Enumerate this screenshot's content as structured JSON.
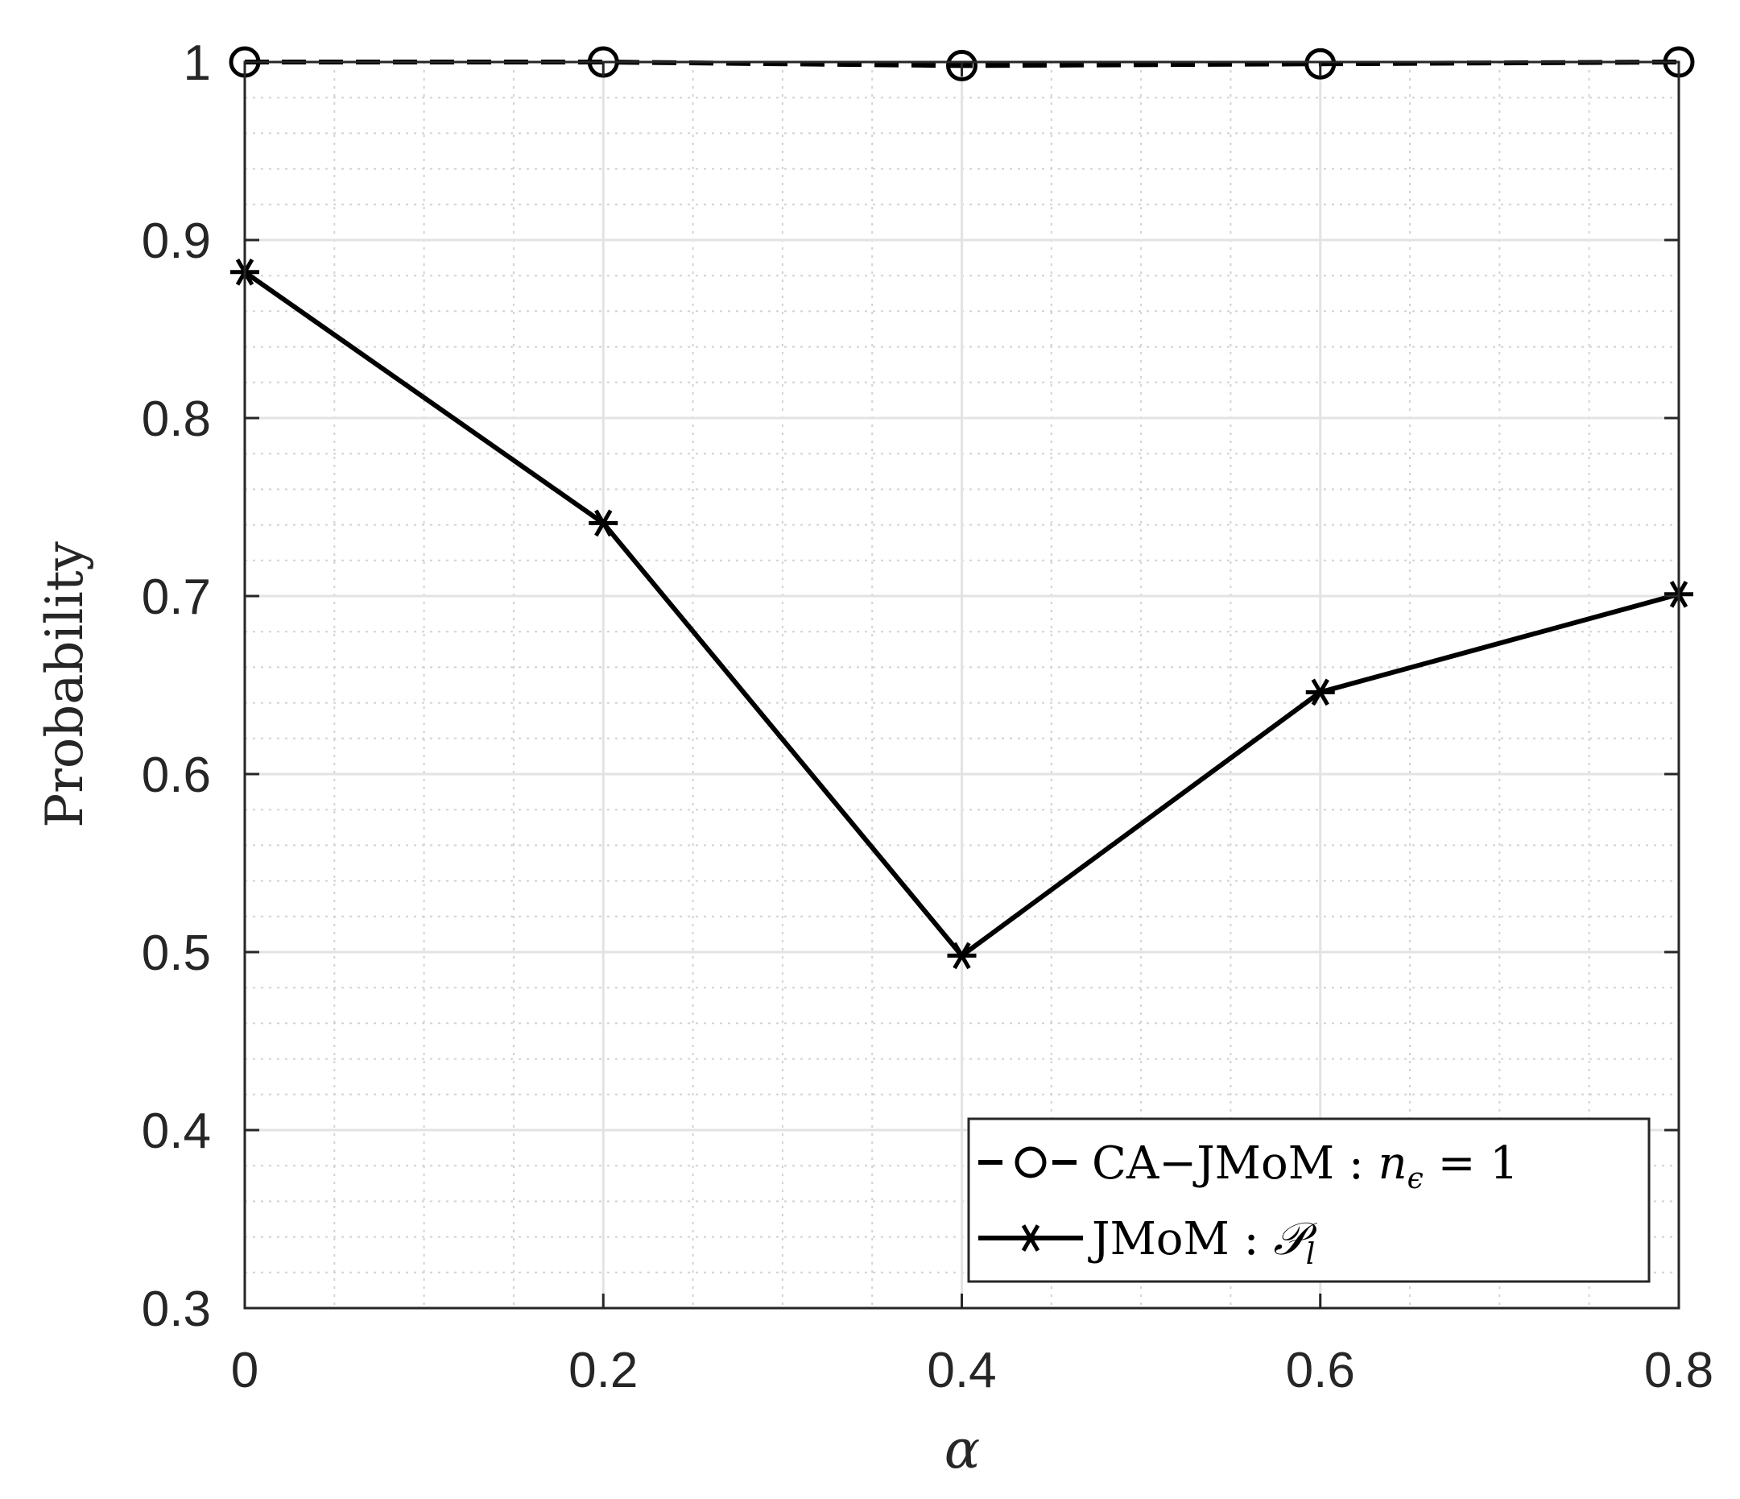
{
  "chart_data": {
    "type": "line",
    "title": "",
    "xlabel": "α",
    "ylabel": "Probability",
    "xlim": [
      0,
      0.8
    ],
    "ylim": [
      0.3,
      1
    ],
    "xticks": [
      0,
      0.2,
      0.4,
      0.6,
      0.8
    ],
    "xtick_labels": [
      "0",
      "0.2",
      "0.4",
      "0.6",
      "0.8"
    ],
    "yticks": [
      0.3,
      0.4,
      0.5,
      0.6,
      0.7,
      0.8,
      0.9,
      1
    ],
    "ytick_labels": [
      "0.3",
      "0.4",
      "0.5",
      "0.6",
      "0.7",
      "0.8",
      "0.9",
      "1"
    ],
    "grid": true,
    "minor_grid": true,
    "legend_position": "bottom-right",
    "series": [
      {
        "name": "CA−JMoM : nϵ = 1",
        "legend_main": "CA−JMoM : ",
        "legend_math": "n",
        "legend_sub": "ϵ",
        "legend_tail": " = 1",
        "line_style": "dashed",
        "marker": "circle",
        "color": "#000000",
        "x": [
          0,
          0.2,
          0.4,
          0.6,
          0.8
        ],
        "y": [
          1.0,
          1.0,
          0.998,
          0.999,
          1.0
        ]
      },
      {
        "name": "JMoM : 𝒫l",
        "legend_main": "JMoM : ",
        "legend_math": "𝒫",
        "legend_sub": "l",
        "legend_tail": "",
        "line_style": "solid",
        "marker": "asterisk",
        "color": "#000000",
        "x": [
          0,
          0.2,
          0.4,
          0.6,
          0.8
        ],
        "y": [
          0.882,
          0.741,
          0.498,
          0.646,
          0.701
        ]
      }
    ]
  }
}
